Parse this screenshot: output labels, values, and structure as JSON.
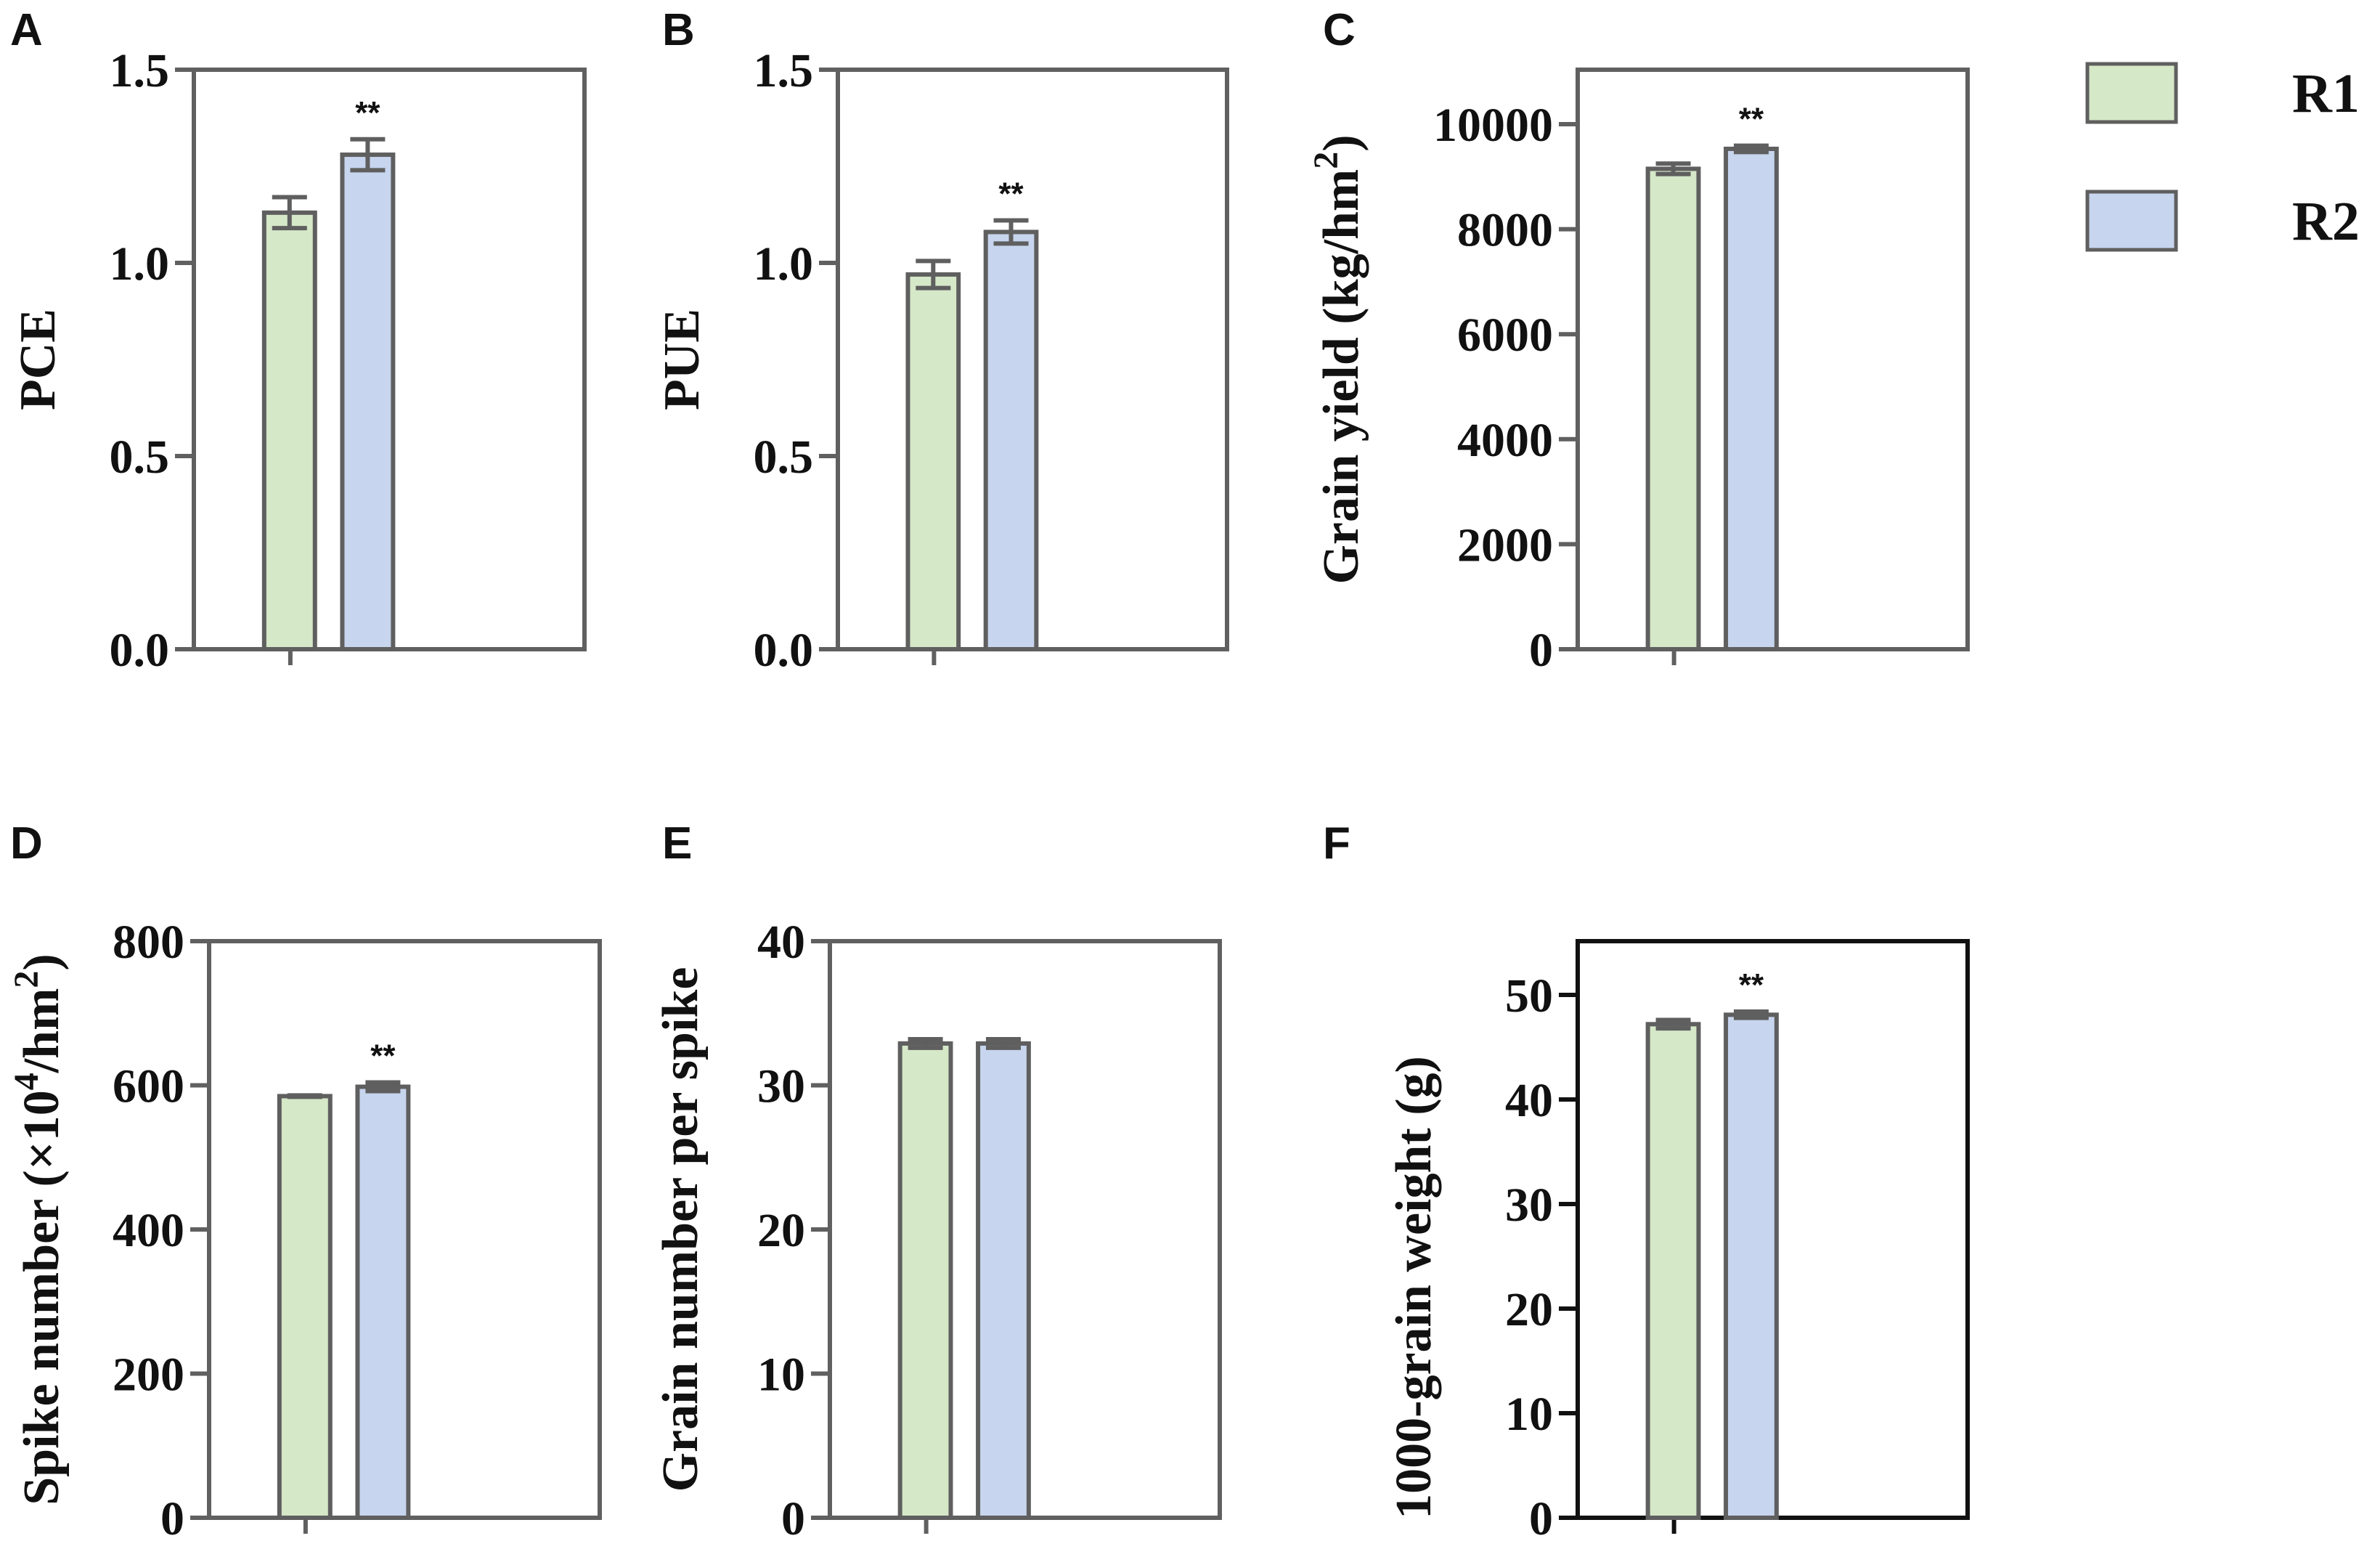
{
  "colors": {
    "R1": "#d5e8c8",
    "R2": "#c7d5ee",
    "bar_stroke": "#5f5f5f",
    "frame_grey": "#606060",
    "frame_black": "#111111"
  },
  "legend": {
    "entries": [
      {
        "label": "R1",
        "color": "#d5e8c8"
      },
      {
        "label": "R2",
        "color": "#c7d5ee"
      }
    ],
    "placement": "top-right"
  },
  "chart_data": [
    {
      "panel": "A",
      "type": "bar",
      "title": "",
      "ylabel": "PCE",
      "ylim": [
        0,
        1.5
      ],
      "yticks": [
        0,
        0.5,
        1.0,
        1.5
      ],
      "yticklabels": [
        "0.0",
        "0.5",
        "1.0",
        "1.5"
      ],
      "categories": [
        "R1",
        "R2"
      ],
      "values": [
        1.13,
        1.28
      ],
      "errors": [
        0.04,
        0.04
      ],
      "significance": [
        "",
        "**"
      ]
    },
    {
      "panel": "B",
      "type": "bar",
      "title": "",
      "ylabel": "PUE",
      "ylim": [
        0,
        1.5
      ],
      "yticks": [
        0,
        0.5,
        1.0,
        1.5
      ],
      "yticklabels": [
        "0.0",
        "0.5",
        "1.0",
        "1.5"
      ],
      "categories": [
        "R1",
        "R2"
      ],
      "values": [
        0.97,
        1.08
      ],
      "errors": [
        0.035,
        0.03
      ],
      "significance": [
        "",
        "**"
      ]
    },
    {
      "panel": "C",
      "type": "bar",
      "title": "",
      "ylabel": "Grain yield (kg/hm",
      "ylabel_sup": "2",
      "ylabel_tail": ")",
      "ylim": [
        0,
        11000
      ],
      "yticks": [
        0,
        2000,
        4000,
        6000,
        8000,
        10000
      ],
      "yticklabels": [
        "0",
        "2000",
        "4000",
        "6000",
        "8000",
        "10000"
      ],
      "categories": [
        "R1",
        "R2"
      ],
      "values": [
        9150,
        9530
      ],
      "errors": [
        100,
        60
      ],
      "significance": [
        "",
        "**"
      ]
    },
    {
      "panel": "D",
      "type": "bar",
      "title": "",
      "ylabel": "Spike number (×10",
      "ylabel_sup": "4",
      "ylabel_mid": "/hm",
      "ylabel_sup2": "2",
      "ylabel_tail": ")",
      "ylim": [
        0,
        800
      ],
      "yticks": [
        0,
        200,
        400,
        600,
        800
      ],
      "yticklabels": [
        "0",
        "200",
        "400",
        "600",
        "800"
      ],
      "categories": [
        "R1",
        "R2"
      ],
      "values": [
        585,
        598
      ],
      "errors": [
        1,
        6
      ],
      "significance": [
        "",
        "**"
      ]
    },
    {
      "panel": "E",
      "type": "bar",
      "title": "",
      "ylabel": "Grain number per spike",
      "ylim": [
        0,
        40
      ],
      "yticks": [
        0,
        10,
        20,
        30,
        40
      ],
      "yticklabels": [
        "0",
        "10",
        "20",
        "30",
        "40"
      ],
      "categories": [
        "R1",
        "R2"
      ],
      "values": [
        32.9,
        32.9
      ],
      "errors": [
        0.3,
        0.3
      ],
      "significance": [
        "",
        ""
      ]
    },
    {
      "panel": "F",
      "type": "bar",
      "title": "",
      "ylabel": "1000-grain weight (g)",
      "ylim": [
        0,
        55
      ],
      "yticks": [
        0,
        10,
        20,
        30,
        40,
        50
      ],
      "yticklabels": [
        "0",
        "10",
        "20",
        "30",
        "40",
        "50"
      ],
      "categories": [
        "R1",
        "R2"
      ],
      "values": [
        47.2,
        48.1
      ],
      "errors": [
        0.4,
        0.3
      ],
      "significance": [
        "",
        "**"
      ]
    }
  ]
}
